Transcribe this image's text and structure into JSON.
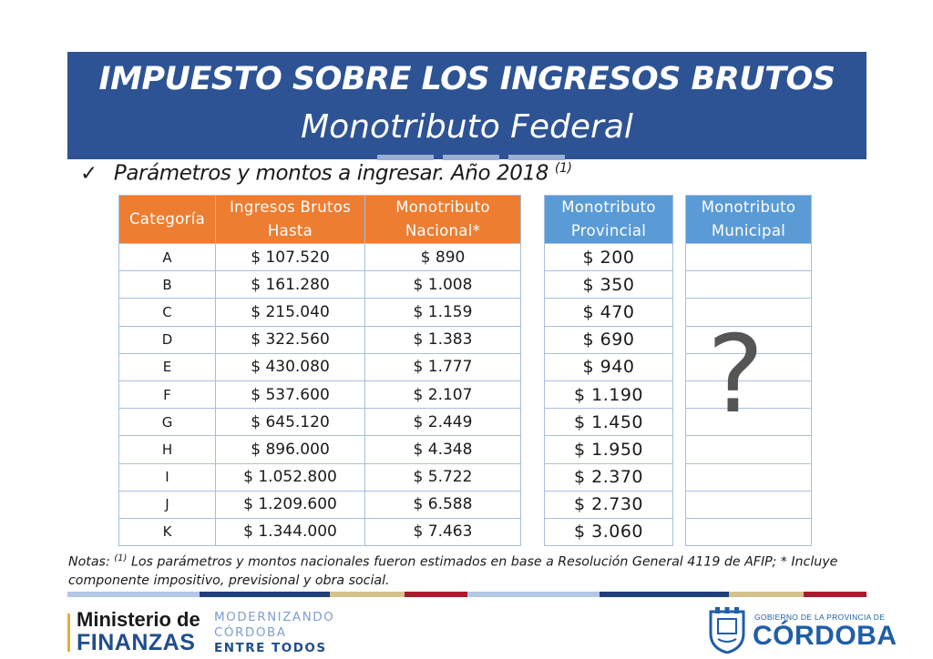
{
  "header": {
    "title": "IMPUESTO SOBRE LOS INGRESOS BRUTOS",
    "subtitle": "Monotributo Federal"
  },
  "section": {
    "check_icon": "checkmark-icon",
    "heading": "Parámetros y montos a ingresar. Año 2018",
    "heading_sup": "(1)"
  },
  "table_main": {
    "headers": [
      "Categoría",
      "Ingresos Brutos Hasta",
      "Monotributo Nacional*"
    ],
    "rows": [
      [
        "A",
        "$ 107.520",
        "$ 890"
      ],
      [
        "B",
        "$ 161.280",
        "$ 1.008"
      ],
      [
        "C",
        "$ 215.040",
        "$ 1.159"
      ],
      [
        "D",
        "$ 322.560",
        "$ 1.383"
      ],
      [
        "E",
        "$ 430.080",
        "$ 1.777"
      ],
      [
        "F",
        "$ 537.600",
        "$ 2.107"
      ],
      [
        "G",
        "$ 645.120",
        "$ 2.449"
      ],
      [
        "H",
        "$ 896.000",
        "$ 4.348"
      ],
      [
        "I",
        "$ 1.052.800",
        "$ 5.722"
      ],
      [
        "J",
        "$ 1.209.600",
        "$ 6.588"
      ],
      [
        "K",
        "$ 1.344.000",
        "$ 7.463"
      ]
    ],
    "header_color": "#ed7d31"
  },
  "table_provincial": {
    "header": "Monotributo Provincial",
    "values": [
      "$ 200",
      "$ 350",
      "$ 470",
      "$ 690",
      "$ 940",
      "$ 1.190",
      "$ 1.450",
      "$ 1.950",
      "$ 2.370",
      "$ 2.730",
      "$ 3.060"
    ],
    "header_color": "#5b9bd5"
  },
  "table_municipal": {
    "header": "Monotributo Municipal",
    "unknown_mark": "?"
  },
  "notes": {
    "prefix": "Notas:",
    "sup": "(1)",
    "text": "Los parámetros y montos nacionales fueron estimados en base a Resolución General 4119 de AFIP; * Incluye componente impositivo, previsional y obra social."
  },
  "footer": {
    "logo_finanzas_line1": "Ministerio de",
    "logo_finanzas_line2": "FINANZAS",
    "logo_mod_line1": "MODERNIZANDO",
    "logo_mod_line2": "CÓRDOBA",
    "logo_mod_line3": "ENTRE TODOS",
    "logo_cba_line1": "GOBIERNO DE LA PROVINCIA DE",
    "logo_cba_line2": "CÓRDOBA",
    "bar_colors": [
      "#b3c7e6",
      "#1f3f7a",
      "#d6c28a",
      "#a61c2c",
      "#b3c7e6",
      "#1f3f7a",
      "#d6c28a",
      "#a61c2c"
    ]
  },
  "colors": {
    "brand_blue": "#2d5394",
    "accent_orange": "#ed7d31",
    "accent_blue": "#5b9bd5"
  }
}
